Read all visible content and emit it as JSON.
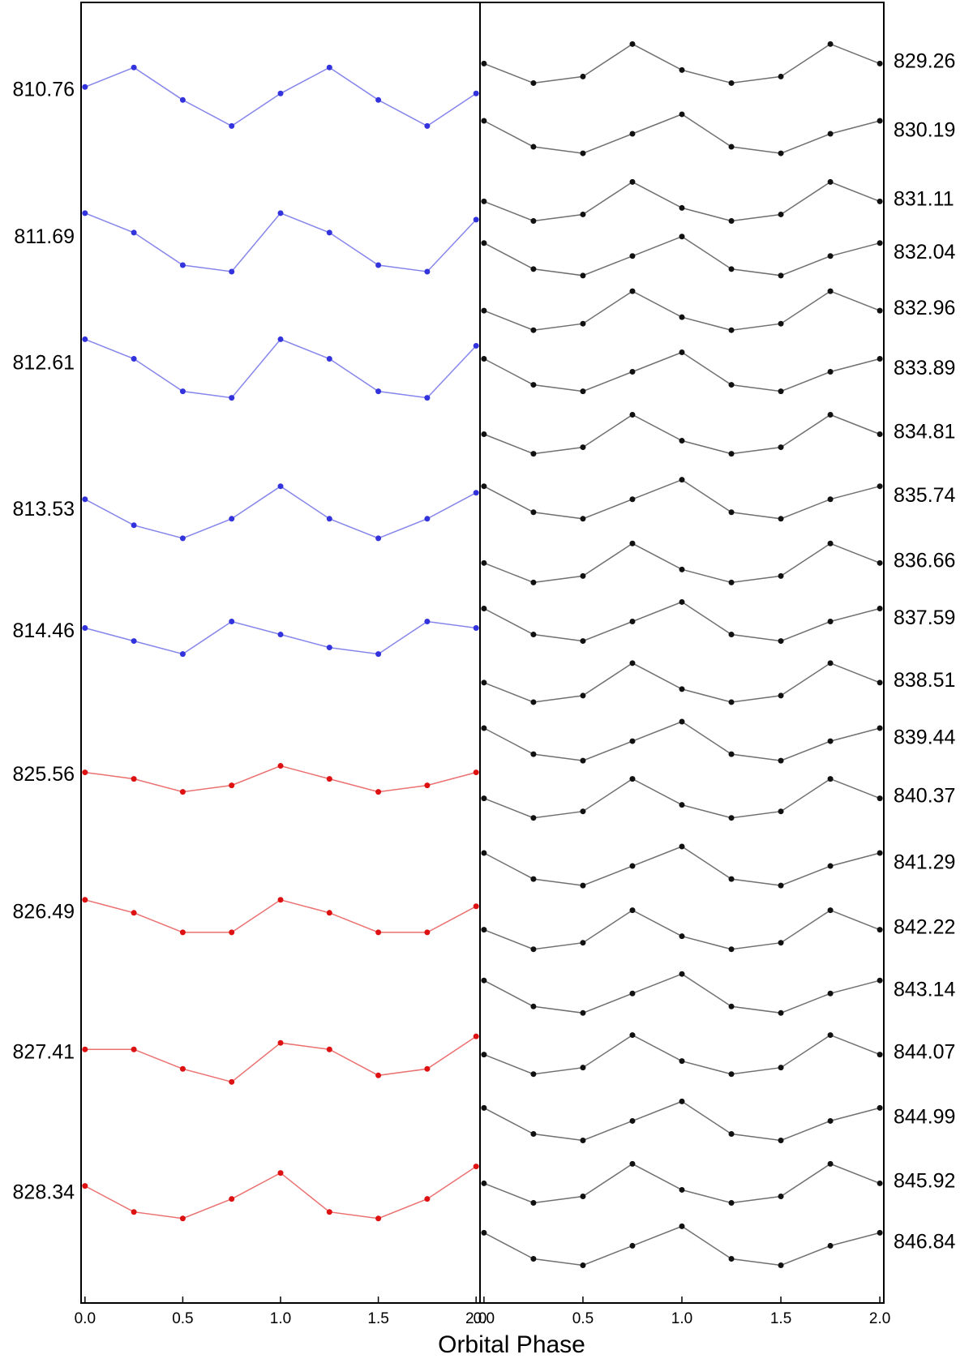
{
  "chart_data": [
    {
      "type": "scatter",
      "label_side": "left",
      "xlabel": "Orbital Phase",
      "xlim": [
        -0.02,
        2.02
      ],
      "xticks": [
        {
          "value": 0,
          "label": "0.0"
        },
        0.5,
        {
          "value": 1,
          "label": "1.0"
        },
        1.5,
        {
          "value": 2,
          "label": "2.0"
        }
      ],
      "ylim": [
        0,
        100
      ],
      "x": [
        0,
        0.25,
        0.5,
        0.75,
        1,
        1.25,
        1.5,
        1.75,
        2
      ],
      "series": [
        {
          "name": "810.76",
          "color": "#3333dd",
          "values": [
            93.5,
            95.0,
            92.5,
            90.5,
            93.0,
            95.0,
            92.5,
            90.5,
            93.0
          ]
        },
        {
          "name": "811.69",
          "color": "#3333dd",
          "values": [
            83.8,
            82.3,
            79.8,
            79.3,
            83.8,
            82.3,
            79.8,
            79.3,
            83.3
          ]
        },
        {
          "name": "812.61",
          "color": "#3333dd",
          "values": [
            74.1,
            72.6,
            70.1,
            69.6,
            74.1,
            72.6,
            70.1,
            69.6,
            73.6
          ]
        },
        {
          "name": "813.53",
          "color": "#3333dd",
          "values": [
            61.8,
            59.8,
            58.8,
            60.3,
            62.8,
            60.3,
            58.8,
            60.3,
            62.3
          ]
        },
        {
          "name": "814.46",
          "color": "#3333dd",
          "values": [
            51.9,
            50.9,
            49.9,
            52.4,
            51.4,
            50.4,
            49.9,
            52.4,
            51.9
          ]
        },
        {
          "name": "825.56",
          "color": "#dd1111",
          "values": [
            40.8,
            40.3,
            39.3,
            39.8,
            41.3,
            40.3,
            39.3,
            39.8,
            40.8
          ]
        },
        {
          "name": "826.49",
          "color": "#dd1111",
          "values": [
            31.0,
            30.0,
            28.5,
            28.5,
            31.0,
            30.0,
            28.5,
            28.5,
            30.5
          ]
        },
        {
          "name": "827.41",
          "color": "#dd1111",
          "values": [
            19.5,
            19.5,
            18.0,
            17.0,
            20.0,
            19.5,
            17.5,
            18.0,
            20.5
          ]
        },
        {
          "name": "828.34",
          "color": "#dd1111",
          "values": [
            9.0,
            7.0,
            6.5,
            8.0,
            10.0,
            7.0,
            6.5,
            8.0,
            10.5
          ]
        }
      ]
    },
    {
      "type": "scatter",
      "label_side": "right",
      "xlim": [
        -0.02,
        2.02
      ],
      "xticks": [
        {
          "value": 0,
          "label": "0.0"
        },
        0.5,
        {
          "value": 1,
          "label": "1.0"
        },
        1.5,
        {
          "value": 2,
          "label": "2.0"
        }
      ],
      "ylim": [
        0,
        100
      ],
      "x": [
        0,
        0.25,
        0.5,
        0.75,
        1,
        1.25,
        1.5,
        1.75,
        2
      ],
      "series": [
        {
          "name": "829.26",
          "color": "#111111",
          "values": [
            95.3,
            93.8,
            94.3,
            96.8,
            94.8,
            93.8,
            94.3,
            96.8,
            95.3
          ]
        },
        {
          "name": "830.19",
          "color": "#111111",
          "values": [
            90.9,
            88.9,
            88.4,
            89.9,
            91.4,
            88.9,
            88.4,
            89.9,
            90.9
          ]
        },
        {
          "name": "831.11",
          "color": "#111111",
          "values": [
            84.7,
            83.2,
            83.7,
            86.2,
            84.2,
            83.2,
            83.7,
            86.2,
            84.7
          ]
        },
        {
          "name": "832.04",
          "color": "#111111",
          "values": [
            81.5,
            79.5,
            79.0,
            80.5,
            82.0,
            79.5,
            79.0,
            80.5,
            81.5
          ]
        },
        {
          "name": "832.96",
          "color": "#111111",
          "values": [
            76.3,
            74.8,
            75.3,
            77.8,
            75.8,
            74.8,
            75.3,
            77.8,
            76.3
          ]
        },
        {
          "name": "833.89",
          "color": "#111111",
          "values": [
            72.6,
            70.6,
            70.1,
            71.6,
            73.1,
            70.6,
            70.1,
            71.6,
            72.6
          ]
        },
        {
          "name": "834.81",
          "color": "#111111",
          "values": [
            66.8,
            65.3,
            65.8,
            68.3,
            66.3,
            65.3,
            65.8,
            68.3,
            66.8
          ]
        },
        {
          "name": "835.74",
          "color": "#111111",
          "values": [
            62.8,
            60.8,
            60.3,
            61.8,
            63.3,
            60.8,
            60.3,
            61.8,
            62.8
          ]
        },
        {
          "name": "836.66",
          "color": "#111111",
          "values": [
            56.9,
            55.4,
            55.9,
            58.4,
            56.4,
            55.4,
            55.9,
            58.4,
            56.9
          ]
        },
        {
          "name": "837.59",
          "color": "#111111",
          "values": [
            53.4,
            51.4,
            50.9,
            52.4,
            53.9,
            51.4,
            50.9,
            52.4,
            53.4
          ]
        },
        {
          "name": "838.51",
          "color": "#111111",
          "values": [
            47.7,
            46.2,
            46.7,
            49.2,
            47.2,
            46.2,
            46.7,
            49.2,
            47.7
          ]
        },
        {
          "name": "839.44",
          "color": "#111111",
          "values": [
            44.2,
            42.2,
            41.7,
            43.2,
            44.7,
            42.2,
            41.7,
            43.2,
            44.2
          ]
        },
        {
          "name": "840.37",
          "color": "#111111",
          "values": [
            38.8,
            37.3,
            37.8,
            40.3,
            38.3,
            37.3,
            37.8,
            40.3,
            38.8
          ]
        },
        {
          "name": "841.29",
          "color": "#111111",
          "values": [
            34.6,
            32.6,
            32.1,
            33.6,
            35.1,
            32.6,
            32.1,
            33.6,
            34.6
          ]
        },
        {
          "name": "842.22",
          "color": "#111111",
          "values": [
            28.7,
            27.2,
            27.7,
            30.2,
            28.2,
            27.2,
            27.7,
            30.2,
            28.7
          ]
        },
        {
          "name": "843.14",
          "color": "#111111",
          "values": [
            24.8,
            22.8,
            22.3,
            23.8,
            25.3,
            22.8,
            22.3,
            23.8,
            24.8
          ]
        },
        {
          "name": "844.07",
          "color": "#111111",
          "values": [
            19.1,
            17.6,
            18.1,
            20.6,
            18.6,
            17.6,
            18.1,
            20.6,
            19.1
          ]
        },
        {
          "name": "844.99",
          "color": "#111111",
          "values": [
            15.0,
            13.0,
            12.5,
            14.0,
            15.5,
            13.0,
            12.5,
            14.0,
            15.0
          ]
        },
        {
          "name": "845.92",
          "color": "#111111",
          "values": [
            9.2,
            7.7,
            8.2,
            10.7,
            8.7,
            7.7,
            8.2,
            10.7,
            9.2
          ]
        },
        {
          "name": "846.84",
          "color": "#111111",
          "values": [
            5.4,
            3.4,
            2.9,
            4.4,
            5.9,
            3.4,
            2.9,
            4.4,
            5.4
          ]
        }
      ]
    }
  ]
}
